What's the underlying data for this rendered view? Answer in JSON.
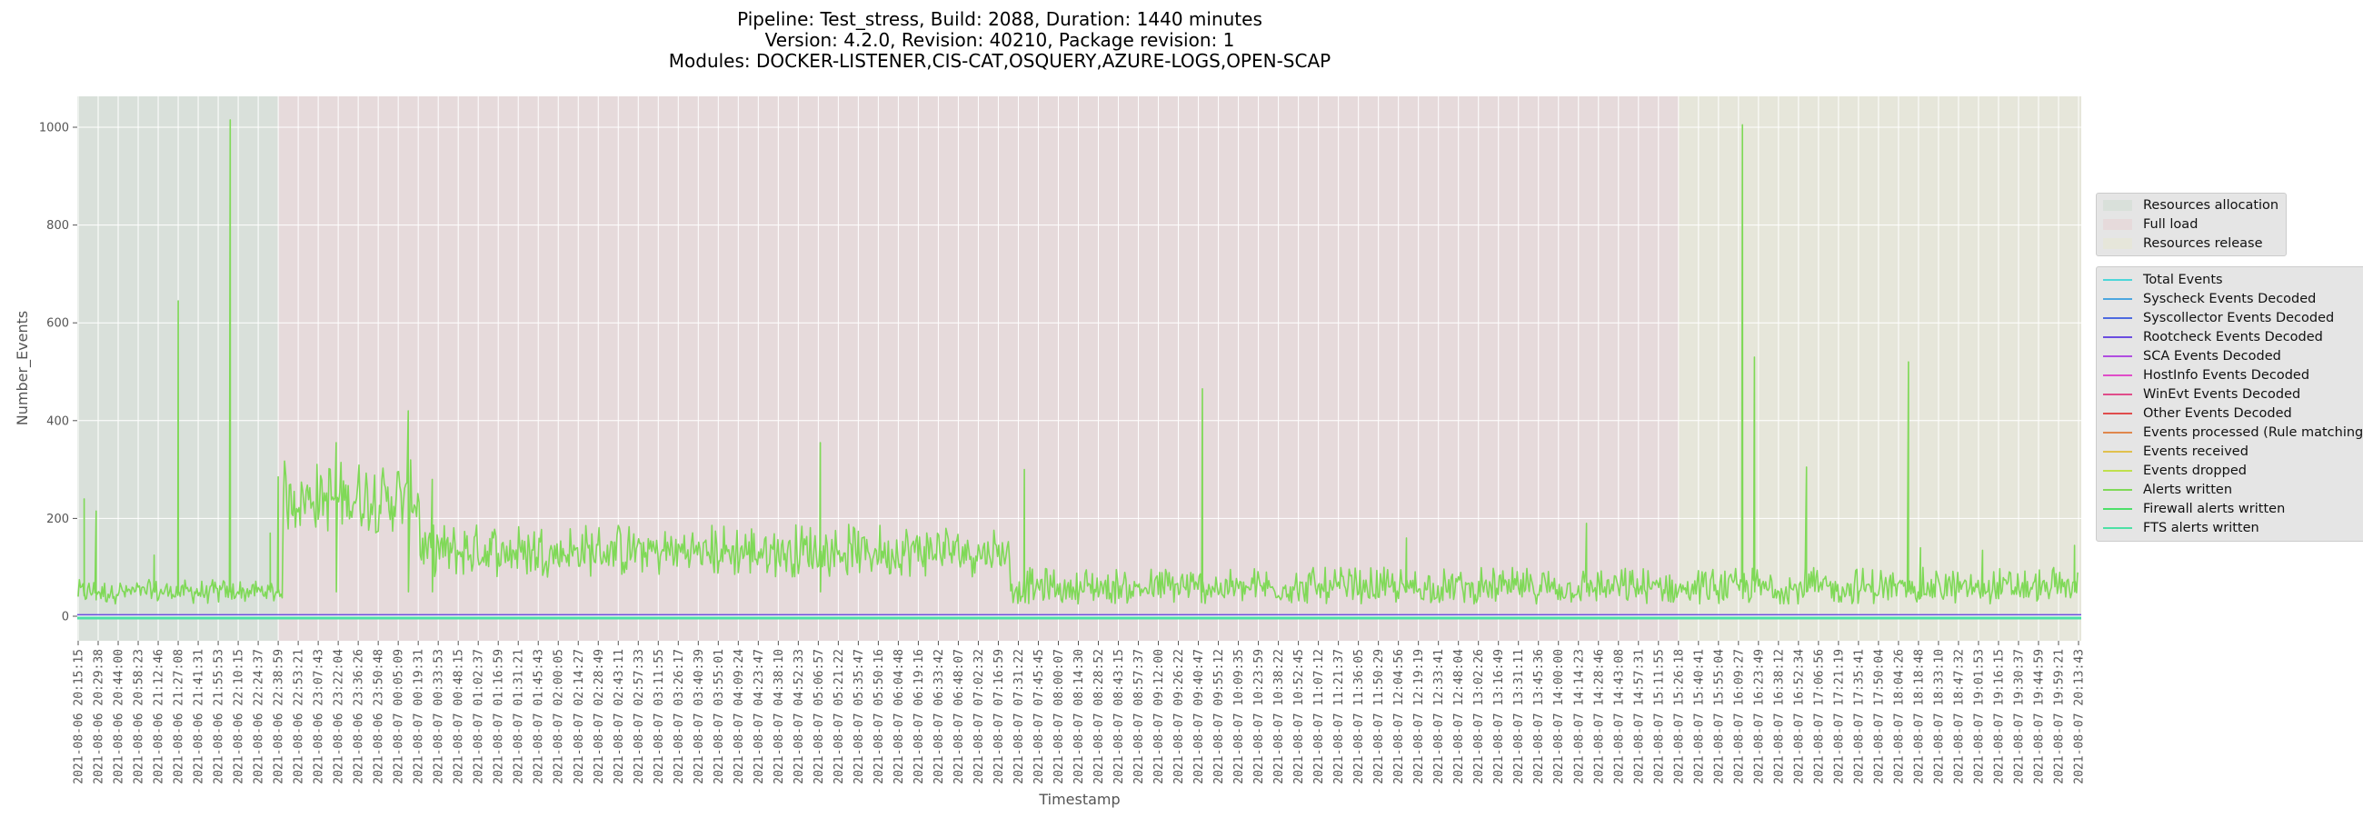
{
  "title": {
    "line1": "Pipeline: Test_stress, Build: 2088, Duration: 1440 minutes",
    "line2": "Version: 4.2.0, Revision: 40210, Package revision: 1",
    "line3": "Modules: DOCKER-LISTENER,CIS-CAT,OSQUERY,AZURE-LOGS,OPEN-SCAP"
  },
  "colors": {
    "plot_bg": "#e5e5e5",
    "grid": "#ffffff",
    "tick_text": "#555555",
    "band_allocation": "#d9e0da",
    "band_full_load": "#e6dadb",
    "band_release": "#e6e6da",
    "alerts_line": "#7fd957"
  },
  "phase_legend": [
    {
      "label": "Resources allocation",
      "color": "#d9e0da"
    },
    {
      "label": "Full load",
      "color": "#e6dadb"
    },
    {
      "label": "Resources release",
      "color": "#e6e6da"
    }
  ],
  "series_legend": [
    {
      "label": "Total Events",
      "color": "#4dd6d9"
    },
    {
      "label": "Syscheck Events Decoded",
      "color": "#4da6e0"
    },
    {
      "label": "Syscollector Events Decoded",
      "color": "#4d6ae0"
    },
    {
      "label": "Rootcheck Events Decoded",
      "color": "#6a4de0"
    },
    {
      "label": "SCA Events Decoded",
      "color": "#b04de0"
    },
    {
      "label": "HostInfo Events Decoded",
      "color": "#e04dc8"
    },
    {
      "label": "WinEvt Events Decoded",
      "color": "#e04d8a"
    },
    {
      "label": "Other Events Decoded",
      "color": "#e04d4d"
    },
    {
      "label": "Events processed (Rule matching)",
      "color": "#e0874d"
    },
    {
      "label": "Events received",
      "color": "#e0c04d"
    },
    {
      "label": "Events dropped",
      "color": "#c0e04d"
    },
    {
      "label": "Alerts written",
      "color": "#7fd957"
    },
    {
      "label": "Firewall alerts written",
      "color": "#4de06a"
    },
    {
      "label": "FTS alerts written",
      "color": "#4de0a6"
    }
  ],
  "chart_data": {
    "type": "line",
    "title": "Pipeline: Test_stress, Build: 2088, Duration: 1440 minutes / Version: 4.2.0, Revision: 40210, Package revision: 1 / Modules: DOCKER-LISTENER,CIS-CAT,OSQUERY,AZURE-LOGS,OPEN-SCAP",
    "xlabel": "Timestamp",
    "ylabel": "Number_Events",
    "ylim": [
      -50,
      1063
    ],
    "yticks": [
      0,
      200,
      400,
      600,
      800,
      1000
    ],
    "grid": true,
    "legend_position": "right outside",
    "phases": [
      {
        "name": "Resources allocation",
        "start": "2021-08-06 20:15:15",
        "end": "2021-08-06 22:38:59"
      },
      {
        "name": "Full load",
        "start": "2021-08-06 22:38:59",
        "end": "2021-08-07 15:26:18"
      },
      {
        "name": "Resources release",
        "start": "2021-08-07 15:26:18",
        "end": "2021-08-07 20:13:43"
      }
    ],
    "xticks": [
      "2021-08-06 20:15:15",
      "2021-08-06 20:29:38",
      "2021-08-06 20:44:00",
      "2021-08-06 20:58:23",
      "2021-08-06 21:12:46",
      "2021-08-06 21:27:08",
      "2021-08-06 21:41:31",
      "2021-08-06 21:55:53",
      "2021-08-06 22:10:15",
      "2021-08-06 22:24:37",
      "2021-08-06 22:38:59",
      "2021-08-06 22:53:21",
      "2021-08-06 23:07:43",
      "2021-08-06 23:22:04",
      "2021-08-06 23:36:26",
      "2021-08-06 23:50:48",
      "2021-08-07 00:05:09",
      "2021-08-07 00:19:31",
      "2021-08-07 00:33:53",
      "2021-08-07 00:48:15",
      "2021-08-07 01:02:37",
      "2021-08-07 01:16:59",
      "2021-08-07 01:31:21",
      "2021-08-07 01:45:43",
      "2021-08-07 02:00:05",
      "2021-08-07 02:14:27",
      "2021-08-07 02:28:49",
      "2021-08-07 02:43:11",
      "2021-08-07 02:57:33",
      "2021-08-07 03:11:55",
      "2021-08-07 03:26:17",
      "2021-08-07 03:40:39",
      "2021-08-07 03:55:01",
      "2021-08-07 04:09:24",
      "2021-08-07 04:23:47",
      "2021-08-07 04:38:10",
      "2021-08-07 04:52:33",
      "2021-08-07 05:06:57",
      "2021-08-07 05:21:22",
      "2021-08-07 05:35:47",
      "2021-08-07 05:50:16",
      "2021-08-07 06:04:48",
      "2021-08-07 06:19:16",
      "2021-08-07 06:33:42",
      "2021-08-07 06:48:07",
      "2021-08-07 07:02:32",
      "2021-08-07 07:16:59",
      "2021-08-07 07:31:22",
      "2021-08-07 07:45:45",
      "2021-08-07 08:00:07",
      "2021-08-07 08:14:30",
      "2021-08-07 08:28:52",
      "2021-08-07 08:43:15",
      "2021-08-07 08:57:37",
      "2021-08-07 09:12:00",
      "2021-08-07 09:26:22",
      "2021-08-07 09:40:47",
      "2021-08-07 09:55:12",
      "2021-08-07 10:09:35",
      "2021-08-07 10:23:59",
      "2021-08-07 10:38:22",
      "2021-08-07 10:52:45",
      "2021-08-07 11:07:12",
      "2021-08-07 11:21:37",
      "2021-08-07 11:36:05",
      "2021-08-07 11:50:29",
      "2021-08-07 12:04:56",
      "2021-08-07 12:19:19",
      "2021-08-07 12:33:41",
      "2021-08-07 12:48:04",
      "2021-08-07 13:02:26",
      "2021-08-07 13:16:49",
      "2021-08-07 13:31:11",
      "2021-08-07 13:45:36",
      "2021-08-07 14:00:00",
      "2021-08-07 14:14:23",
      "2021-08-07 14:28:46",
      "2021-08-07 14:43:08",
      "2021-08-07 14:57:31",
      "2021-08-07 15:11:55",
      "2021-08-07 15:26:18",
      "2021-08-07 15:40:41",
      "2021-08-07 15:55:04",
      "2021-08-07 16:09:27",
      "2021-08-07 16:23:49",
      "2021-08-07 16:38:12",
      "2021-08-07 16:52:34",
      "2021-08-07 17:06:56",
      "2021-08-07 17:21:19",
      "2021-08-07 17:35:41",
      "2021-08-07 17:50:04",
      "2021-08-07 18:04:26",
      "2021-08-07 18:18:48",
      "2021-08-07 18:33:10",
      "2021-08-07 18:47:32",
      "2021-08-07 19:01:53",
      "2021-08-07 19:16:15",
      "2021-08-07 19:30:37",
      "2021-08-07 19:44:59",
      "2021-08-07 19:59:21",
      "2021-08-07 20:13:43"
    ],
    "series": [
      {
        "name": "Alerts written",
        "description": "Dominant visible series; noisy band with occasional spikes",
        "segments": [
          {
            "from_tick": 0,
            "to_tick": 10.2,
            "low": 25,
            "high": 75,
            "baseline": 50
          },
          {
            "from_tick": 10.2,
            "to_tick": 17.1,
            "low": 170,
            "high": 320,
            "baseline": 240
          },
          {
            "from_tick": 17.1,
            "to_tick": 46.6,
            "low": 80,
            "high": 190,
            "baseline": 130
          },
          {
            "from_tick": 46.6,
            "to_tick": 100,
            "low": 25,
            "high": 100,
            "baseline": 55
          }
        ],
        "spikes": [
          {
            "tick": 0.3,
            "value": 240
          },
          {
            "tick": 0.9,
            "value": 215
          },
          {
            "tick": 5.0,
            "value": 645
          },
          {
            "tick": 3.8,
            "value": 125
          },
          {
            "tick": 7.6,
            "value": 1015
          },
          {
            "tick": 9.6,
            "value": 170
          },
          {
            "tick": 10.0,
            "value": 285
          },
          {
            "tick": 12.9,
            "value": 355
          },
          {
            "tick": 16.5,
            "value": 420
          },
          {
            "tick": 17.7,
            "value": 280
          },
          {
            "tick": 37.1,
            "value": 355
          },
          {
            "tick": 47.3,
            "value": 300
          },
          {
            "tick": 56.2,
            "value": 465
          },
          {
            "tick": 66.4,
            "value": 160
          },
          {
            "tick": 75.4,
            "value": 190
          },
          {
            "tick": 83.2,
            "value": 1005
          },
          {
            "tick": 83.8,
            "value": 530
          },
          {
            "tick": 86.4,
            "value": 305
          },
          {
            "tick": 91.5,
            "value": 520
          },
          {
            "tick": 92.1,
            "value": 140
          },
          {
            "tick": 95.2,
            "value": 135
          },
          {
            "tick": 99.8,
            "value": 145
          }
        ]
      },
      {
        "name": "Total Events",
        "values_summary": "near 0 throughout",
        "value": 0
      },
      {
        "name": "Syscheck Events Decoded",
        "value": 0
      },
      {
        "name": "Syscollector Events Decoded",
        "value": 0
      },
      {
        "name": "Rootcheck Events Decoded",
        "value": 3
      },
      {
        "name": "SCA Events Decoded",
        "value": 0
      },
      {
        "name": "HostInfo Events Decoded",
        "value": 0
      },
      {
        "name": "WinEvt Events Decoded",
        "value": 0
      },
      {
        "name": "Other Events Decoded",
        "value": 0
      },
      {
        "name": "Events processed (Rule matching)",
        "values_summary": "tracks Alerts written closely",
        "value": null
      },
      {
        "name": "Events received",
        "value": 0
      },
      {
        "name": "Events dropped",
        "value": 0
      },
      {
        "name": "Firewall alerts written",
        "value": 0
      },
      {
        "name": "FTS alerts written",
        "value": 0
      }
    ]
  },
  "axes": {
    "xlabel": "Timestamp",
    "ylabel": "Number_Events",
    "yticks": [
      "0",
      "200",
      "400",
      "600",
      "800",
      "1000"
    ]
  }
}
